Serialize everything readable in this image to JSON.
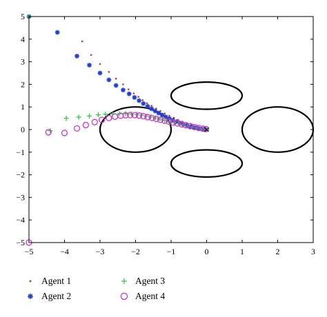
{
  "chart_data": {
    "type": "scatter",
    "xlim": [
      -5,
      3
    ],
    "ylim": [
      -5,
      5
    ],
    "x_ticks": [
      -5,
      -4,
      -3,
      -2,
      -1,
      0,
      1,
      2,
      3
    ],
    "y_ticks": [
      -5,
      -4,
      -3,
      -2,
      -1,
      0,
      1,
      2,
      3,
      4,
      5
    ],
    "x_tick_labels": [
      "−5",
      "−4",
      "−3",
      "−2",
      "−1",
      "0",
      "1",
      "2",
      "3"
    ],
    "y_tick_labels": [
      "−5",
      "−4",
      "−3",
      "−2",
      "−1",
      "0",
      "1",
      "2",
      "3",
      "4",
      "5"
    ],
    "grid": false,
    "legend_position": "bottom",
    "target": {
      "x": 0,
      "y": 0,
      "marker": "x"
    },
    "obstacles": [
      {
        "cx": 0,
        "cy": 1.5,
        "rx": 1.0,
        "ry": 0.6
      },
      {
        "cx": -2.0,
        "cy": 0,
        "rx": 1.0,
        "ry": 1.0
      },
      {
        "cx": 2.0,
        "cy": 0,
        "rx": 1.0,
        "ry": 1.0
      },
      {
        "cx": 0,
        "cy": -1.5,
        "rx": 1.0,
        "ry": 0.6
      }
    ],
    "series": [
      {
        "name": "Agent 1",
        "marker": "dot",
        "color": "#c0392b",
        "x": [
          -5,
          -3.5,
          -3.25,
          -3.0,
          -2.75,
          -2.55,
          -2.35,
          -2.2,
          -2.05,
          -1.92,
          -1.8,
          -1.68,
          -1.55,
          -1.42,
          -1.3,
          -1.18,
          -1.05,
          -0.92,
          -0.8,
          -0.68,
          -0.55,
          -0.42,
          -0.3,
          -0.18,
          -0.06
        ],
        "y": [
          5,
          3.9,
          3.3,
          2.9,
          2.55,
          2.25,
          2.0,
          1.78,
          1.6,
          1.45,
          1.3,
          1.17,
          1.05,
          0.93,
          0.82,
          0.71,
          0.61,
          0.52,
          0.43,
          0.35,
          0.27,
          0.2,
          0.13,
          0.07,
          0.02
        ]
      },
      {
        "name": "Agent 2",
        "marker": "star",
        "color": "#1f3fd1",
        "x": [
          -5,
          -4.2,
          -3.65,
          -3.3,
          -3.0,
          -2.75,
          -2.55,
          -2.35,
          -2.18,
          -2.03,
          -1.9,
          -1.78,
          -1.66,
          -1.55,
          -1.45,
          -1.35,
          -1.25,
          -1.15,
          -1.05,
          -0.95,
          -0.85,
          -0.75,
          -0.65,
          -0.55,
          -0.45,
          -0.35,
          -0.25,
          -0.15,
          -0.05
        ],
        "y": [
          5,
          4.3,
          3.25,
          2.85,
          2.5,
          2.2,
          1.95,
          1.75,
          1.58,
          1.42,
          1.28,
          1.15,
          1.03,
          0.92,
          0.82,
          0.73,
          0.64,
          0.56,
          0.49,
          0.42,
          0.35,
          0.29,
          0.23,
          0.18,
          0.13,
          0.09,
          0.06,
          0.03,
          0.01
        ]
      },
      {
        "name": "Agent 3",
        "marker": "plus",
        "color": "#2ecc40",
        "x": [
          -5,
          -4.4,
          -3.95,
          -3.6,
          -3.3,
          -3.05,
          -2.85,
          -2.65,
          -2.45,
          -2.28,
          -2.12,
          -1.97,
          -1.83,
          -1.7,
          -1.57,
          -1.44,
          -1.31,
          -1.18,
          -1.05,
          -0.92,
          -0.79,
          -0.66,
          -0.53,
          -0.4,
          -0.27,
          -0.14,
          -0.03
        ],
        "y": [
          5,
          -0.05,
          0.5,
          0.55,
          0.6,
          0.65,
          0.68,
          0.7,
          0.7,
          0.7,
          0.69,
          0.67,
          0.64,
          0.6,
          0.56,
          0.51,
          0.46,
          0.41,
          0.36,
          0.31,
          0.26,
          0.21,
          0.16,
          0.11,
          0.07,
          0.04,
          0.01
        ]
      },
      {
        "name": "Agent 4",
        "marker": "circle",
        "color": "#cc33cc",
        "x": [
          -5,
          -4.45,
          -4.0,
          -3.65,
          -3.4,
          -3.15,
          -2.95,
          -2.75,
          -2.58,
          -2.42,
          -2.28,
          -2.15,
          -2.02,
          -1.9,
          -1.78,
          -1.66,
          -1.54,
          -1.42,
          -1.3,
          -1.18,
          -1.06,
          -0.94,
          -0.82,
          -0.7,
          -0.58,
          -0.46,
          -0.34,
          -0.22,
          -0.1,
          -0.02
        ],
        "y": [
          -5,
          -0.12,
          -0.15,
          0.05,
          0.2,
          0.33,
          0.43,
          0.51,
          0.57,
          0.61,
          0.63,
          0.64,
          0.64,
          0.62,
          0.59,
          0.55,
          0.51,
          0.47,
          0.43,
          0.39,
          0.35,
          0.31,
          0.27,
          0.23,
          0.19,
          0.15,
          0.11,
          0.07,
          0.04,
          0.02
        ]
      }
    ]
  }
}
